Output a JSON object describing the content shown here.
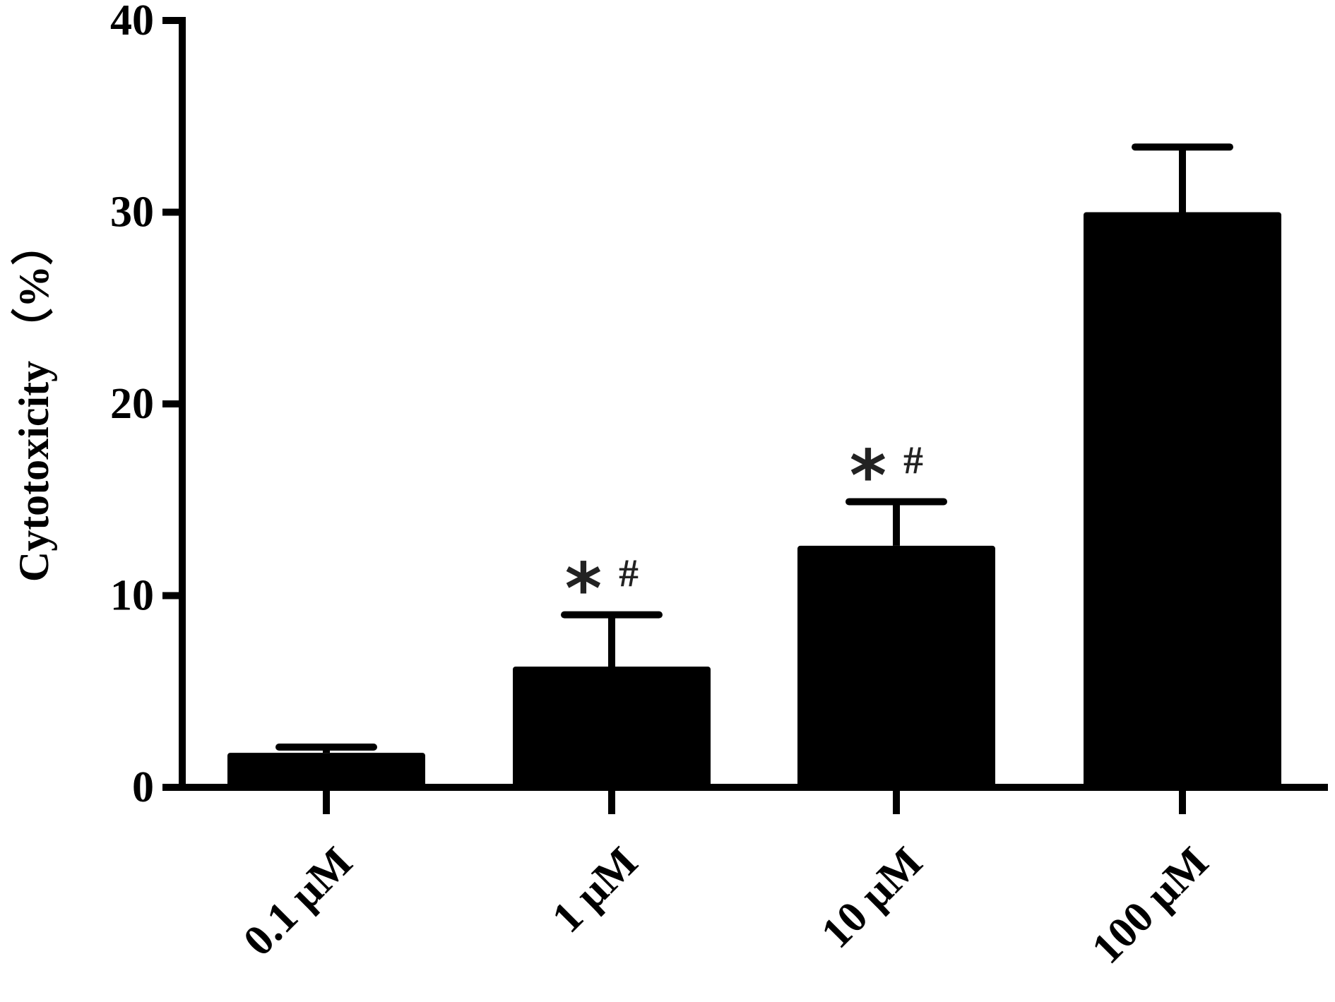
{
  "chart_data": {
    "type": "bar",
    "y_label": "Cytotoxicity （%）",
    "categories": [
      "0.1 μM",
      "1 μM",
      "10 μM",
      "100 μM"
    ],
    "values": [
      1.8,
      6.3,
      12.6,
      30
    ],
    "errors": [
      0.3,
      2.7,
      2.3,
      3.4
    ],
    "annotations": [
      null,
      [
        "*",
        "#"
      ],
      [
        "*",
        "#"
      ],
      null
    ],
    "color": "#000000",
    "ylim": [
      0,
      40
    ],
    "yticks": [
      0,
      10,
      20,
      30,
      40
    ],
    "grid": false
  }
}
